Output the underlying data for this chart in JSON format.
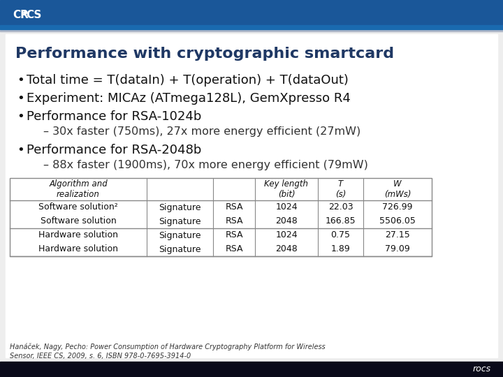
{
  "title": "Performance with cryptographic smartcard",
  "title_color": "#1F3864",
  "bg_color": "#F0F0F0",
  "header_bg_top": "#1B4F8A",
  "header_bg_bot": "#1A6AAF",
  "footer_bg": "#1A1A2E",
  "accent_line_color": "#B0B8C8",
  "bullet_points": [
    "Total time = T(dataIn) + T(operation) + T(dataOut)",
    "Experiment: MICAz (ATmega128L), GemXpresso R4",
    "Performance for RSA-1024b",
    "Performance for RSA-2048b"
  ],
  "sub_bullets": [
    "– 30x faster (750ms), 27x more energy efficient (27mW)",
    "– 88x faster (1900ms), 70x more energy efficient (79mW)"
  ],
  "table_rows": [
    [
      "Software solution²",
      "Signature",
      "RSA",
      "1024",
      "22.03",
      "726.99"
    ],
    [
      "Software solution",
      "Signature",
      "RSA",
      "2048",
      "166.85",
      "5506.05"
    ],
    [
      "Hardware solution",
      "Signature",
      "RSA",
      "1024",
      "0.75",
      "27.15"
    ],
    [
      "Hardware solution",
      "Signature",
      "RSA",
      "2048",
      "1.89",
      "79.09"
    ]
  ],
  "footnote": "Hanáček, Nagy, Pecho: Power Consumption of Hardware Cryptography Platform for Wireless\nSensor, IEEE CS, 2009, s. 6, ISBN 978-0-7695-3914-0",
  "table_border_color": "#888888",
  "text_color": "#111111",
  "sub_bullet_color": "#333333",
  "content_bg": "#FFFFFF"
}
